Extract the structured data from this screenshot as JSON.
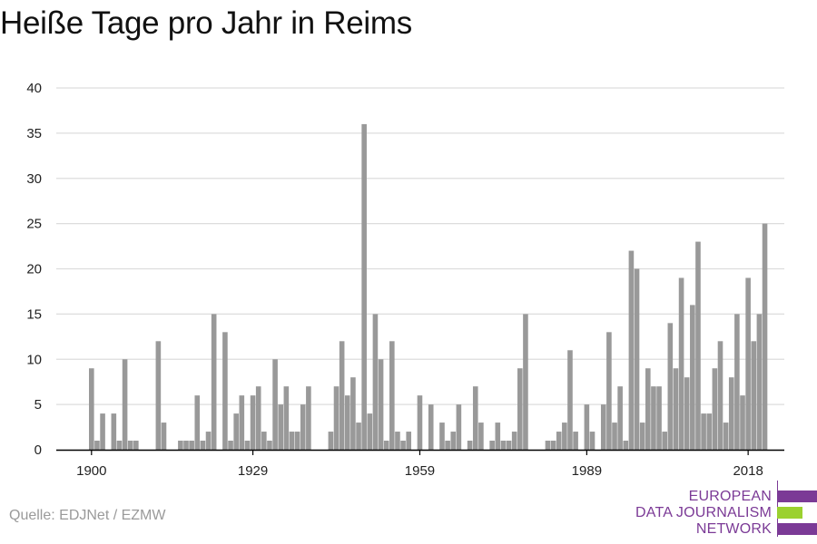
{
  "title": "Heiße Tage pro Jahr in Reims",
  "source": "Quelle: EDJNet / EZMW",
  "logo": {
    "lines": [
      "EUROPEAN",
      "DATA JOURNALISM",
      "NETWORK"
    ],
    "colors": {
      "purple": "#7b3a96",
      "green": "#9bd12f"
    }
  },
  "colors": {
    "bar": "#999999",
    "grid": "#dddddd",
    "axis": "#000000"
  },
  "chart_data": {
    "type": "bar",
    "title": "Heiße Tage pro Jahr in Reims",
    "xlabel": "",
    "ylabel": "",
    "ylim": [
      0,
      40
    ],
    "yticks": [
      0,
      5,
      10,
      15,
      20,
      25,
      30,
      35,
      40
    ],
    "xticks": [
      1900,
      1929,
      1959,
      1989,
      2018
    ],
    "grid": true,
    "x_start": 1900,
    "values": [
      9,
      1,
      4,
      0,
      4,
      1,
      10,
      1,
      1,
      0,
      0,
      0,
      12,
      3,
      0,
      0,
      1,
      1,
      1,
      6,
      1,
      2,
      15,
      0,
      13,
      1,
      4,
      6,
      1,
      6,
      7,
      2,
      1,
      10,
      5,
      7,
      2,
      2,
      5,
      7,
      0,
      0,
      0,
      2,
      7,
      12,
      6,
      8,
      3,
      36,
      4,
      15,
      10,
      1,
      12,
      2,
      1,
      2,
      0,
      6,
      0,
      5,
      0,
      3,
      1,
      2,
      5,
      0,
      1,
      7,
      3,
      0,
      1,
      3,
      1,
      1,
      2,
      9,
      15,
      0,
      0,
      0,
      1,
      1,
      2,
      3,
      11,
      2,
      0,
      5,
      2,
      0,
      5,
      13,
      3,
      7,
      1,
      22,
      20,
      3,
      9,
      7,
      7,
      2,
      14,
      9,
      19,
      8,
      16,
      23,
      4,
      4,
      9,
      12,
      3,
      8,
      15,
      6,
      19,
      12,
      15,
      25
    ]
  }
}
